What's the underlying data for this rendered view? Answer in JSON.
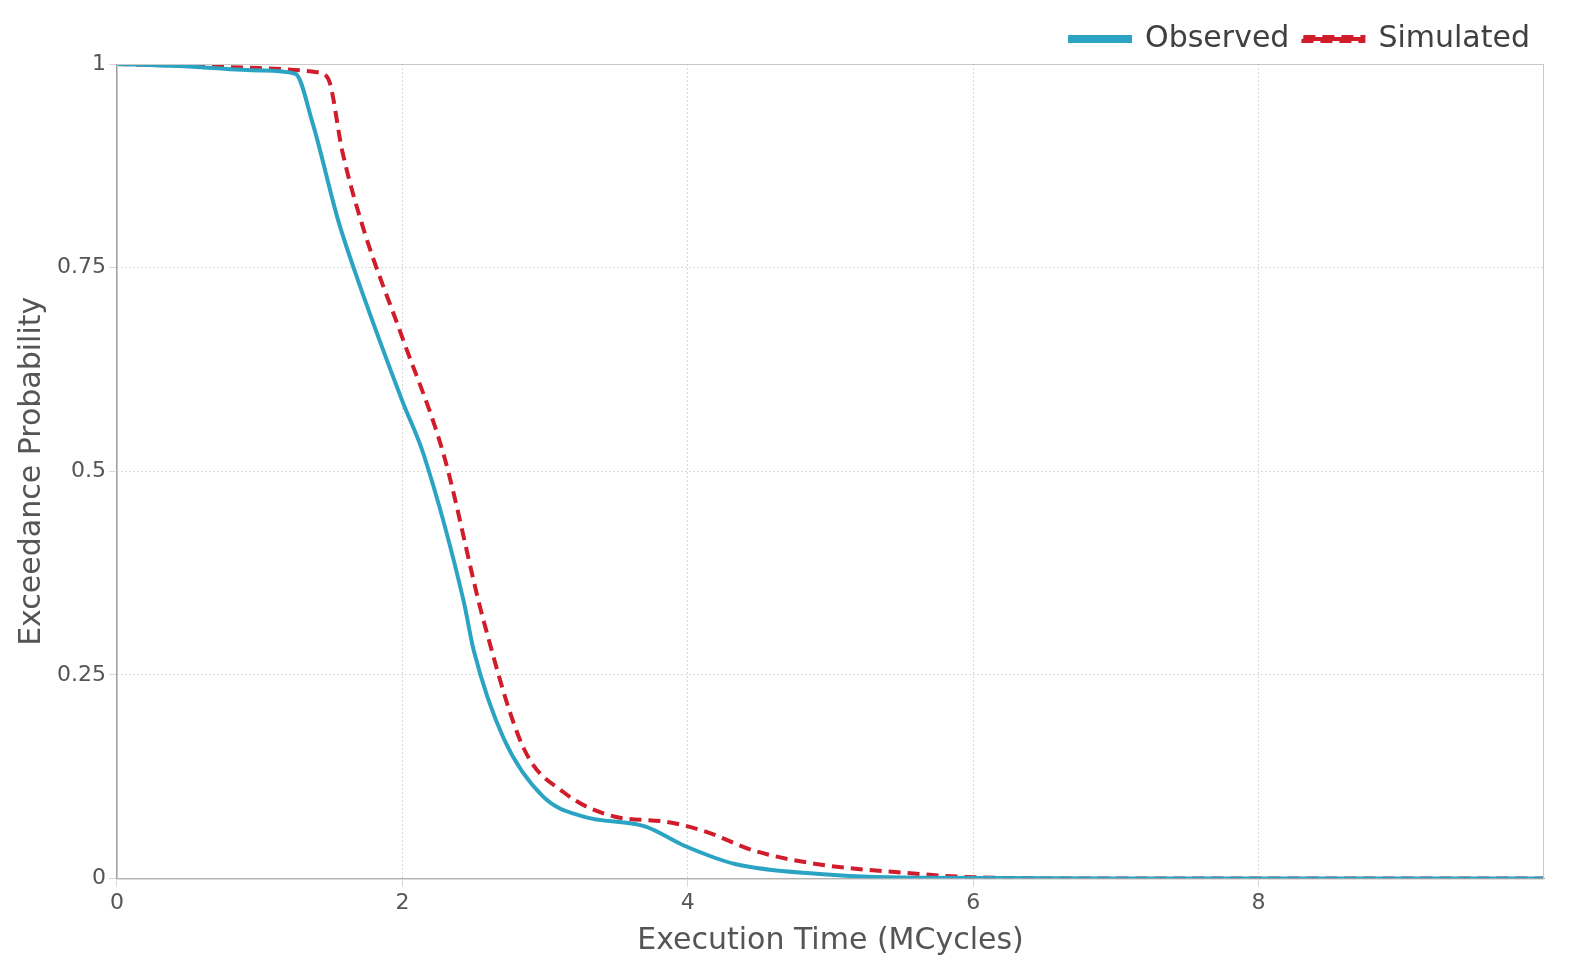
{
  "chart_data": {
    "type": "line",
    "x_label": "Execution Time (MCycles)",
    "y_label": "Exceedance Probability",
    "xlim": [
      0,
      10
    ],
    "xticks": [
      0,
      2,
      4,
      6,
      8
    ],
    "ylim": [
      0,
      1
    ],
    "yticks": [
      0,
      0.25,
      0.5,
      0.75,
      1
    ],
    "grid": true,
    "legend": "top-right",
    "series": [
      {
        "name": "Observed",
        "color": "#2aa4c2",
        "line_style": "solid",
        "x": [
          0,
          0.5,
          1,
          1.25,
          1.37,
          1.55,
          1.65,
          2.0,
          2.15,
          2.43,
          2.5,
          2.71,
          2.99,
          3.27,
          3.7,
          3.98,
          4.33,
          4.9,
          5.6,
          7,
          10
        ],
        "values": [
          1,
          0.997,
          0.992,
          0.988,
          0.928,
          0.808,
          0.754,
          0.586,
          0.52,
          0.34,
          0.28,
          0.172,
          0.1,
          0.076,
          0.064,
          0.04,
          0.018,
          0.006,
          0.001,
          0,
          0
        ]
      },
      {
        "name": "Simulated",
        "color": "#d01c2b",
        "line_style": "dashed",
        "x": [
          0,
          1,
          1.4,
          1.48,
          1.58,
          1.73,
          2.0,
          2.29,
          2.57,
          2.85,
          3.13,
          3.49,
          3.84,
          4.12,
          4.47,
          4.9,
          5.6,
          5.95,
          7,
          10
        ],
        "values": [
          1,
          0.995,
          0.99,
          0.982,
          0.892,
          0.796,
          0.664,
          0.52,
          0.316,
          0.16,
          0.106,
          0.076,
          0.07,
          0.058,
          0.034,
          0.018,
          0.006,
          0.002,
          0,
          0
        ]
      }
    ]
  }
}
